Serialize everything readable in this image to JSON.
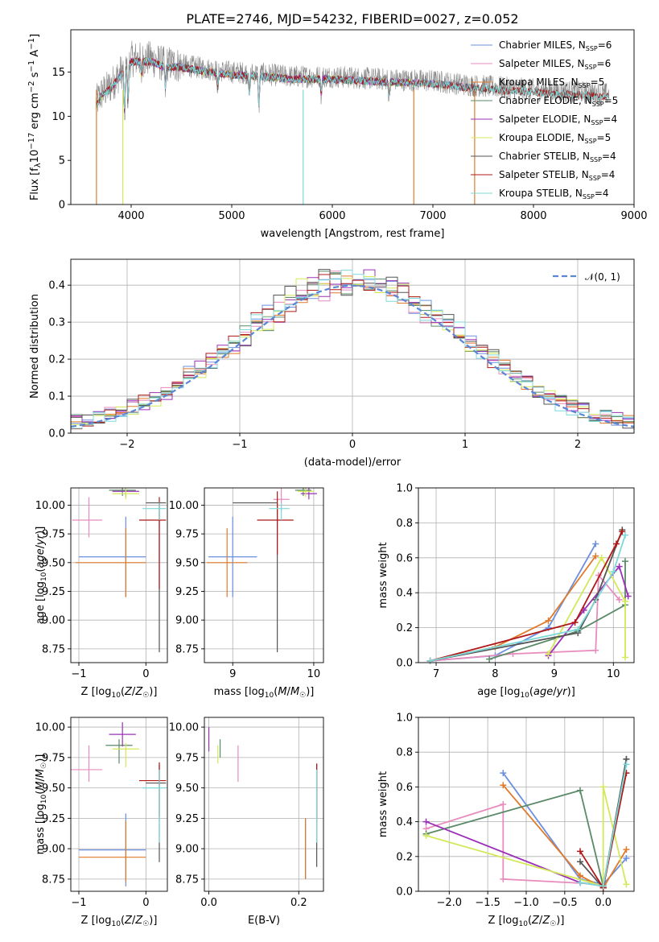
{
  "title": "PLATE=2746, MJD=54232, FIBERID=0027, z=0.052",
  "colors": {
    "Chabrier MILES": "#6b8fe0",
    "Salpeter MILES": "#e88bbd",
    "Kroupa MILES": "#e07a2a",
    "Chabrier ELODIE": "#5a8a68",
    "Salpeter ELODIE": "#9b30b8",
    "Kroupa ELODIE": "#d4e85a",
    "Chabrier STELIB": "#555555",
    "Salpeter STELIB": "#b01818",
    "Kroupa STELIB": "#7dd8d8"
  },
  "chart_data": [
    {
      "id": "spectrum",
      "type": "line",
      "title": "PLATE=2746, MJD=54232, FIBERID=0027, z=0.052",
      "xlabel": "wavelength [Angstrom, rest frame]",
      "ylabel": "Flux [f_λ 10^-17 erg cm^-2 s^-1 A^-1]",
      "xlim": [
        3400,
        9000
      ],
      "ylim": [
        0,
        19.8
      ],
      "xticks": [
        "4000",
        "5000",
        "6000",
        "7000",
        "8000",
        "9000"
      ],
      "yticks": [
        "0",
        "5",
        "10",
        "15"
      ],
      "legend_position": "upper-right",
      "legend": [
        {
          "label": "Chabrier MILES",
          "n": "6"
        },
        {
          "label": "Salpeter MILES",
          "n": "6"
        },
        {
          "label": "Kroupa MILES",
          "n": "5"
        },
        {
          "label": "Chabrier ELODIE",
          "n": "5"
        },
        {
          "label": "Salpeter ELODIE",
          "n": "4"
        },
        {
          "label": "Kroupa ELODIE",
          "n": "5"
        },
        {
          "label": "Chabrier STELIB",
          "n": "4"
        },
        {
          "label": "Salpeter STELIB",
          "n": "4"
        },
        {
          "label": "Kroupa STELIB",
          "n": "4"
        }
      ],
      "data_envelope": {
        "x": [
          3650,
          3700,
          3800,
          3900,
          4000,
          4100,
          4200,
          4300,
          4500,
          4800,
          5000,
          5300,
          5600,
          6000,
          6500,
          7000,
          7400,
          8000,
          8500,
          8750
        ],
        "y": [
          11.5,
          12.5,
          13.5,
          15.0,
          16.5,
          16.5,
          16.5,
          16.0,
          15.8,
          15.3,
          15.0,
          14.8,
          14.5,
          14.5,
          14.2,
          14.0,
          13.5,
          13.0,
          12.7,
          12.5
        ]
      }
    },
    {
      "id": "residuals",
      "type": "histogram",
      "xlabel": "(data-model)/error",
      "ylabel": "Normed distribution",
      "xlim": [
        -2.5,
        2.5
      ],
      "ylim": [
        0,
        0.47
      ],
      "xticks": [
        "−2",
        "−1",
        "0",
        "1",
        "2"
      ],
      "yticks": [
        "0.0",
        "0.1",
        "0.2",
        "0.3",
        "0.4"
      ],
      "grid": true,
      "legend_position": "upper-right",
      "reference_curve": {
        "label": "𝒩(0, 1)",
        "mean": 0,
        "sigma": 1,
        "style": "dashed"
      },
      "bin_width": 0.1
    },
    {
      "id": "age-vs-Z",
      "type": "scatter",
      "xlabel": "Z [log10(Z/Z☉)]",
      "ylabel": "age [log10(age/yr)]",
      "xlim": [
        -1.12,
        0.32
      ],
      "ylim": [
        8.63,
        10.15
      ],
      "xticks": [
        "−1",
        "0"
      ],
      "yticks": [
        "8.75",
        "9.00",
        "9.25",
        "9.50",
        "9.75",
        "10.00"
      ],
      "grid": true,
      "points": [
        {
          "model": "Chabrier MILES",
          "x": -0.3,
          "xerr": [
            0.7,
            0.3
          ],
          "y": 9.55,
          "yerr": [
            0.35,
            0.35
          ]
        },
        {
          "model": "Salpeter MILES",
          "x": -0.85,
          "xerr": [
            0.25,
            0.2
          ],
          "y": 9.87,
          "yerr": [
            0.15,
            0.2
          ]
        },
        {
          "model": "Kroupa MILES",
          "x": -0.3,
          "xerr": [
            0.75,
            0.3
          ],
          "y": 9.5,
          "yerr": [
            0.3,
            0.3
          ]
        },
        {
          "model": "Chabrier ELODIE",
          "x": -0.35,
          "xerr": [
            0.2,
            0.2
          ],
          "y": 10.13,
          "yerr": [
            0.05,
            0.05
          ]
        },
        {
          "model": "Salpeter ELODIE",
          "x": -0.3,
          "xerr": [
            0.2,
            0.2
          ],
          "y": 10.12,
          "yerr": [
            0.05,
            0.05
          ]
        },
        {
          "model": "Kroupa ELODIE",
          "x": -0.3,
          "xerr": [
            0.2,
            0.2
          ],
          "y": 10.1,
          "yerr": [
            0.05,
            0.05
          ]
        },
        {
          "model": "Chabrier STELIB",
          "x": 0.2,
          "xerr": [
            0.2,
            0.1
          ],
          "y": 10.02,
          "yerr": [
            1.3,
            0.0
          ]
        },
        {
          "model": "Salpeter STELIB",
          "x": 0.2,
          "xerr": [
            0.3,
            0.1
          ],
          "y": 9.87,
          "yerr": [
            0.6,
            0.2
          ]
        },
        {
          "model": "Kroupa STELIB",
          "x": 0.2,
          "xerr": [
            0.25,
            0.1
          ],
          "y": 9.97,
          "yerr": [
            0.1,
            0.05
          ]
        }
      ]
    },
    {
      "id": "age-vs-mass",
      "type": "scatter",
      "xlabel": "mass [log10(M/M☉)]",
      "ylabel": "",
      "xlim": [
        8.65,
        10.12
      ],
      "ylim": [
        8.63,
        10.15
      ],
      "xticks": [
        "9",
        "10"
      ],
      "yticks": [
        "8.75",
        "9.00",
        "9.25",
        "9.50",
        "9.75",
        "10.00"
      ],
      "grid": true,
      "points": [
        {
          "model": "Chabrier MILES",
          "x": 9.0,
          "xerr": [
            0.3,
            0.3
          ],
          "y": 9.55,
          "yerr": [
            0.35,
            0.35
          ]
        },
        {
          "model": "Salpeter MILES",
          "x": 9.6,
          "xerr": [
            0.1,
            0.1
          ],
          "y": 10.05,
          "yerr": [
            0.1,
            0.1
          ]
        },
        {
          "model": "Kroupa MILES",
          "x": 8.93,
          "xerr": [
            0.25,
            0.25
          ],
          "y": 9.5,
          "yerr": [
            0.3,
            0.3
          ]
        },
        {
          "model": "Chabrier ELODIE",
          "x": 9.87,
          "xerr": [
            0.1,
            0.1
          ],
          "y": 10.13,
          "yerr": [
            0.05,
            0.05
          ]
        },
        {
          "model": "Salpeter ELODIE",
          "x": 9.94,
          "xerr": [
            0.1,
            0.1
          ],
          "y": 10.1,
          "yerr": [
            0.05,
            0.05
          ]
        },
        {
          "model": "Kroupa ELODIE",
          "x": 9.9,
          "xerr": [
            0.1,
            0.1
          ],
          "y": 10.12,
          "yerr": [
            0.05,
            0.05
          ]
        },
        {
          "model": "Chabrier STELIB",
          "x": 9.55,
          "xerr": [
            0.55,
            0.0
          ],
          "y": 10.02,
          "yerr": [
            1.3,
            0.0
          ]
        },
        {
          "model": "Salpeter STELIB",
          "x": 9.55,
          "xerr": [
            0.25,
            0.2
          ],
          "y": 9.87,
          "yerr": [
            0.3,
            0.25
          ]
        },
        {
          "model": "Kroupa STELIB",
          "x": 9.6,
          "xerr": [
            0.15,
            0.1
          ],
          "y": 9.97,
          "yerr": [
            0.1,
            0.05
          ]
        }
      ]
    },
    {
      "id": "massweight-vs-age",
      "type": "line",
      "xlabel": "age [log10(age/yr)]",
      "ylabel": "mass weight",
      "xlim": [
        6.7,
        10.35
      ],
      "ylim": [
        0.0,
        1.0
      ],
      "xticks": [
        "7",
        "8",
        "9",
        "10"
      ],
      "yticks": [
        "0.0",
        "0.2",
        "0.4",
        "0.6",
        "0.8",
        "1.0"
      ],
      "grid": true,
      "series": [
        {
          "model": "Chabrier MILES",
          "x": [
            6.9,
            8.0,
            8.9,
            9.7
          ],
          "y": [
            0.01,
            0.04,
            0.2,
            0.68
          ]
        },
        {
          "model": "Salpeter MILES",
          "x": [
            6.9,
            8.3,
            9.7,
            9.75,
            10.1
          ],
          "y": [
            0.01,
            0.05,
            0.07,
            0.5,
            0.36
          ]
        },
        {
          "model": "Kroupa MILES",
          "x": [
            6.9,
            8.0,
            8.9,
            9.7
          ],
          "y": [
            0.01,
            0.09,
            0.24,
            0.61
          ]
        },
        {
          "model": "Chabrier ELODIE",
          "x": [
            7.9,
            9.4,
            10.2,
            10.2
          ],
          "y": [
            0.02,
            0.18,
            0.33,
            0.58
          ]
        },
        {
          "model": "Salpeter ELODIE",
          "x": [
            8.9,
            9.5,
            10.1,
            10.25
          ],
          "y": [
            0.04,
            0.3,
            0.55,
            0.38
          ]
        },
        {
          "model": "Kroupa ELODIE",
          "x": [
            8.9,
            9.8,
            10.2,
            10.2
          ],
          "y": [
            0.05,
            0.6,
            0.35,
            0.03
          ]
        },
        {
          "model": "Chabrier STELIB",
          "x": [
            6.9,
            9.4,
            9.7,
            10.15
          ],
          "y": [
            0.01,
            0.17,
            0.36,
            0.76
          ]
        },
        {
          "model": "Salpeter STELIB",
          "x": [
            6.9,
            9.35,
            10.05,
            10.15
          ],
          "y": [
            0.01,
            0.23,
            0.68,
            0.75
          ]
        },
        {
          "model": "Kroupa STELIB",
          "x": [
            6.9,
            9.4,
            10.0,
            10.2
          ],
          "y": [
            0.01,
            0.19,
            0.52,
            0.73
          ]
        }
      ]
    },
    {
      "id": "mass-vs-Z",
      "type": "scatter",
      "xlabel": "Z [log10(Z/Z☉)]",
      "ylabel": "mass [log10(M/M☉)]",
      "xlim": [
        -1.12,
        0.32
      ],
      "ylim": [
        8.65,
        10.08
      ],
      "xticks": [
        "−1",
        "0"
      ],
      "yticks": [
        "8.75",
        "9.00",
        "9.25",
        "9.50",
        "9.75",
        "10.00"
      ],
      "grid": true,
      "points": [
        {
          "model": "Chabrier MILES",
          "x": -0.3,
          "xerr": [
            0.7,
            0.3
          ],
          "y": 8.99,
          "yerr": [
            0.3,
            0.3
          ]
        },
        {
          "model": "Salpeter MILES",
          "x": -0.85,
          "xerr": [
            0.3,
            0.2
          ],
          "y": 9.65,
          "yerr": [
            0.1,
            0.2
          ]
        },
        {
          "model": "Kroupa MILES",
          "x": -0.3,
          "xerr": [
            0.7,
            0.3
          ],
          "y": 8.93,
          "yerr": [
            0.2,
            0.3
          ]
        },
        {
          "model": "Chabrier ELODIE",
          "x": -0.4,
          "xerr": [
            0.2,
            0.2
          ],
          "y": 9.85,
          "yerr": [
            0.15,
            0.05
          ]
        },
        {
          "model": "Salpeter ELODIE",
          "x": -0.35,
          "xerr": [
            0.2,
            0.2
          ],
          "y": 9.94,
          "yerr": [
            0.1,
            0.1
          ]
        },
        {
          "model": "Kroupa ELODIE",
          "x": -0.3,
          "xerr": [
            0.2,
            0.2
          ],
          "y": 9.82,
          "yerr": [
            0.15,
            0.05
          ]
        },
        {
          "model": "Chabrier STELIB",
          "x": 0.2,
          "xerr": [
            0.2,
            0.1
          ],
          "y": 9.54,
          "yerr": [
            0.65,
            0.15
          ]
        },
        {
          "model": "Salpeter STELIB",
          "x": 0.2,
          "xerr": [
            0.3,
            0.1
          ],
          "y": 9.56,
          "yerr": [
            0.3,
            0.15
          ]
        },
        {
          "model": "Kroupa STELIB",
          "x": 0.2,
          "xerr": [
            0.25,
            0.1
          ],
          "y": 9.5,
          "yerr": [
            0.45,
            0.15
          ]
        }
      ]
    },
    {
      "id": "mass-vs-EBV",
      "type": "scatter",
      "xlabel": "E(B-V)",
      "ylabel": "",
      "xlim": [
        -0.01,
        0.255
      ],
      "ylim": [
        8.65,
        10.08
      ],
      "xticks": [
        "0.0",
        "0.2"
      ],
      "yticks": [
        "8.75",
        "9.00",
        "9.25",
        "9.50",
        "9.75",
        "10.00"
      ],
      "grid": true,
      "points": [
        {
          "model": "Chabrier MILES",
          "x": 0.215,
          "y": 9.0,
          "yerr": [
            0.25,
            0.25
          ]
        },
        {
          "model": "Salpeter MILES",
          "x": 0.065,
          "y": 9.7,
          "yerr": [
            0.15,
            0.15
          ]
        },
        {
          "model": "Kroupa MILES",
          "x": 0.215,
          "y": 8.95,
          "yerr": [
            0.2,
            0.3
          ]
        },
        {
          "model": "Chabrier ELODIE",
          "x": 0.025,
          "y": 9.85,
          "yerr": [
            0.1,
            0.05
          ]
        },
        {
          "model": "Salpeter ELODIE",
          "x": 0.0,
          "y": 9.9,
          "yerr": [
            0.1,
            0.1
          ]
        },
        {
          "model": "Kroupa ELODIE",
          "x": 0.02,
          "y": 9.8,
          "yerr": [
            0.1,
            0.05
          ]
        },
        {
          "model": "Chabrier STELIB",
          "x": 0.24,
          "y": 9.3,
          "yerr": [
            0.45,
            0.4
          ]
        },
        {
          "model": "Salpeter STELIB",
          "x": 0.24,
          "y": 9.55,
          "yerr": [
            0.3,
            0.15
          ]
        },
        {
          "model": "Kroupa STELIB",
          "x": 0.24,
          "y": 9.45,
          "yerr": [
            0.4,
            0.2
          ]
        }
      ]
    },
    {
      "id": "massweight-vs-Z",
      "type": "line",
      "xlabel": "Z [log10(Z/Z☉)]",
      "ylabel": "mass weight",
      "xlim": [
        -2.4,
        0.4
      ],
      "ylim": [
        0.0,
        1.0
      ],
      "xticks": [
        "−2.0",
        "−1.5",
        "−1.0",
        "−0.5",
        "0.0"
      ],
      "yticks": [
        "0.0",
        "0.2",
        "0.4",
        "0.6",
        "0.8",
        "1.0"
      ],
      "grid": true,
      "series": [
        {
          "model": "Chabrier MILES",
          "x": [
            -1.3,
            -0.3,
            0.0,
            0.3
          ],
          "y": [
            0.68,
            0.07,
            0.04,
            0.19
          ]
        },
        {
          "model": "Salpeter MILES",
          "x": [
            -2.3,
            -1.3,
            -1.3,
            0.0
          ],
          "y": [
            0.36,
            0.5,
            0.07,
            0.04
          ]
        },
        {
          "model": "Kroupa MILES",
          "x": [
            -1.3,
            -0.3,
            0.0,
            0.3
          ],
          "y": [
            0.61,
            0.09,
            0.02,
            0.24
          ]
        },
        {
          "model": "Chabrier ELODIE",
          "x": [
            -2.3,
            -0.3,
            0.0,
            0.3
          ],
          "y": [
            0.33,
            0.58,
            0.03,
            0.76
          ]
        },
        {
          "model": "Salpeter ELODIE",
          "x": [
            -2.3,
            -0.3,
            0.0
          ],
          "y": [
            0.4,
            0.05,
            0.03
          ]
        },
        {
          "model": "Kroupa ELODIE",
          "x": [
            -2.3,
            0.0,
            0.0,
            0.3
          ],
          "y": [
            0.32,
            0.03,
            0.6,
            0.04
          ]
        },
        {
          "model": "Chabrier STELIB",
          "x": [
            -0.3,
            0.0,
            0.3
          ],
          "y": [
            0.17,
            0.02,
            0.76
          ]
        },
        {
          "model": "Salpeter STELIB",
          "x": [
            -0.3,
            0.0,
            0.3
          ],
          "y": [
            0.23,
            0.02,
            0.68
          ]
        },
        {
          "model": "Kroupa STELIB",
          "x": [
            -0.3,
            0.0,
            0.3
          ],
          "y": [
            0.05,
            0.03,
            0.73
          ]
        }
      ]
    }
  ]
}
